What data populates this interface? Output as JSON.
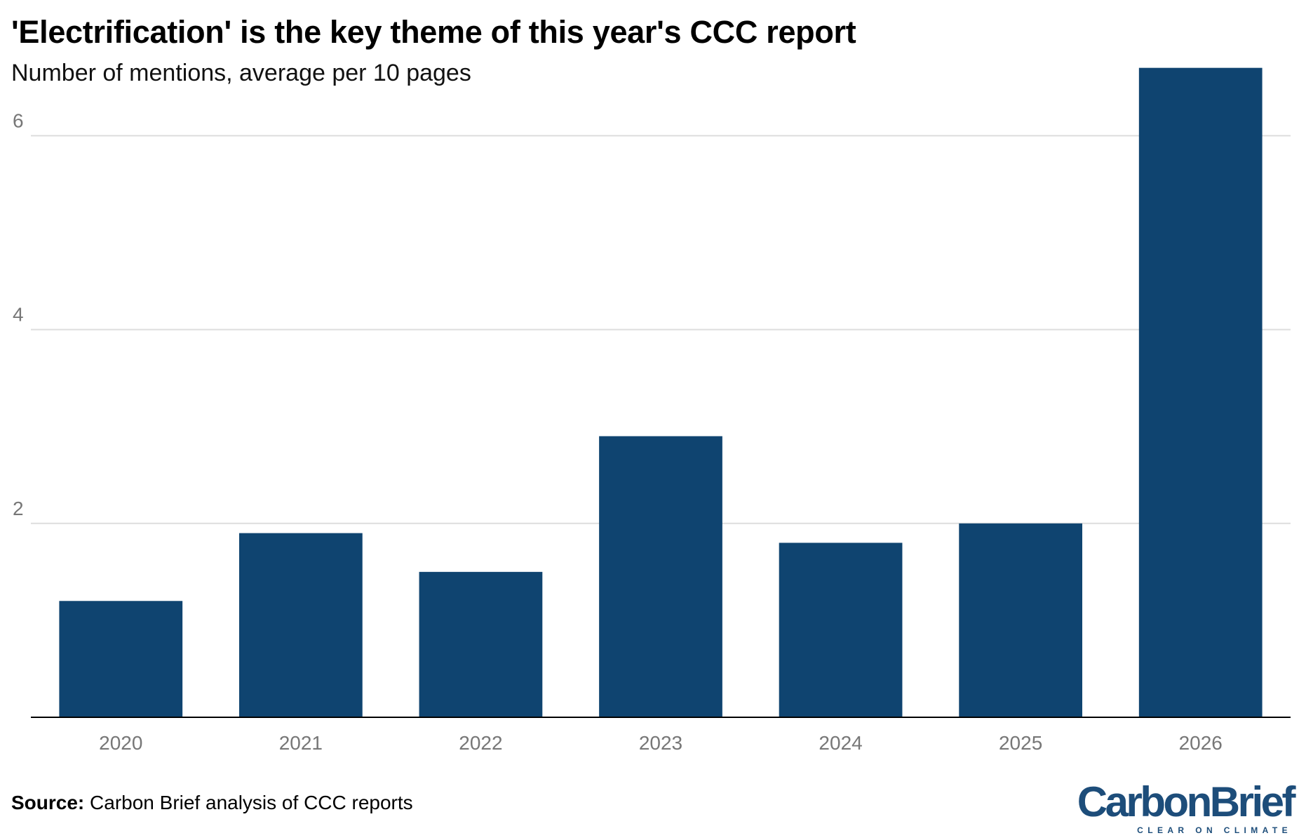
{
  "header": {
    "title": "'Electrification' is the key theme of this year's CCC report",
    "subtitle": "Number of mentions, average per 10 pages"
  },
  "footer": {
    "source_label": "Source:",
    "source_text": " Carbon Brief analysis of CCC reports"
  },
  "logo": {
    "wordmark_part1": "Carbon",
    "wordmark_part2": "Brief",
    "tagline": "CLEAR ON CLIMATE"
  },
  "colors": {
    "bar": "#0f4470",
    "gridline": "#dddddd",
    "axis_line": "#000000",
    "tick_label": "#777777",
    "logo": "#1d4d7a"
  },
  "chart_data": {
    "type": "bar",
    "categories": [
      "2020",
      "2021",
      "2022",
      "2023",
      "2024",
      "2025",
      "2026"
    ],
    "values": [
      1.2,
      1.9,
      1.5,
      2.9,
      1.8,
      2.0,
      6.7
    ],
    "ylim": [
      0,
      7.4
    ],
    "yticks": [
      2,
      4,
      6
    ],
    "grid": true,
    "legend": "none",
    "title": "'Electrification' is the key theme of this year's CCC report",
    "subtitle": "Number of mentions, average per 10 pages",
    "xlabel": "",
    "ylabel": ""
  }
}
